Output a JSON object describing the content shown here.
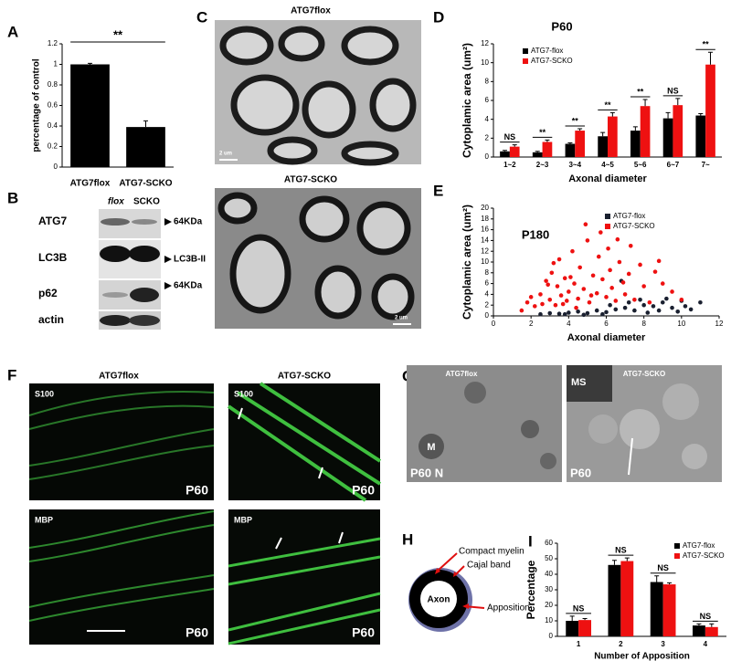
{
  "figure": {
    "letters": [
      "A",
      "B",
      "C",
      "D",
      "E",
      "F",
      "G",
      "H",
      "I"
    ],
    "blot": {
      "lanes": [
        "flox",
        "SCKO"
      ],
      "proteins": [
        "ATG7",
        "LC3B",
        "p62",
        "actin"
      ],
      "markers": [
        "64KDa",
        "LC3B-II",
        "64KDa"
      ]
    },
    "em": {
      "top": "ATG7flox",
      "bottom": "ATG7-SCKO",
      "scale": [
        "2 um",
        "2 um"
      ]
    },
    "fluor": {
      "left": "ATG7flox",
      "right": "ATG7-SCKO",
      "stains": [
        "S100",
        "S100",
        "MBP",
        "MBP"
      ],
      "ages": [
        "P60",
        "P60",
        "P60",
        "P60"
      ]
    },
    "tem": {
      "left": "ATG7flox",
      "right": "ATG7-SCKO",
      "marks": [
        "M",
        "MS"
      ],
      "ages": [
        "P60 N",
        "P60"
      ]
    },
    "schema": {
      "labels": [
        "Compact myelin",
        "Cajal band",
        "Axon",
        "Apposition"
      ]
    }
  },
  "chart_data": [
    {
      "type": "bar",
      "y_label": "percentage of control",
      "categories": [
        "ATG7flox",
        "ATG7-SCKO"
      ],
      "values": [
        1.0,
        0.39
      ],
      "errors": [
        0.01,
        0.06
      ],
      "color": "#000000",
      "annotation": "**",
      "ylim": [
        0,
        1.2
      ],
      "yticks": [
        0,
        0.2,
        0.4,
        0.6,
        0.8,
        1,
        1.2
      ]
    },
    {
      "type": "bar",
      "title": "P60",
      "y_label": "Cytoplamic area (um²)",
      "x_label": "Axonal diameter",
      "categories": [
        "1~2",
        "2~3",
        "3~4",
        "4~5",
        "5~6",
        "6~7",
        "7~"
      ],
      "series": [
        {
          "name": "ATG7-flox",
          "color": "#000000",
          "values": [
            0.6,
            0.5,
            1.4,
            2.2,
            2.8,
            4.1,
            4.4
          ],
          "errors": [
            0.1,
            0.1,
            0.1,
            0.4,
            0.4,
            0.6,
            0.2
          ]
        },
        {
          "name": "ATG7-SCKO",
          "color": "#ee1111",
          "values": [
            1.1,
            1.6,
            2.8,
            4.3,
            5.4,
            5.5,
            9.8
          ],
          "errors": [
            0.2,
            0.2,
            0.2,
            0.4,
            0.7,
            0.7,
            1.3
          ]
        }
      ],
      "annotations": [
        "NS",
        "**",
        "**",
        "**",
        "**",
        "NS",
        "**"
      ],
      "ylim": [
        0,
        12
      ],
      "yticks": [
        0,
        2,
        4,
        6,
        8,
        10,
        12
      ]
    },
    {
      "type": "scatter",
      "title": "P180",
      "y_label": "Cytoplamic area (um²)",
      "x_label": "Axonal diameter",
      "series": [
        {
          "name": "ATG7-flox",
          "color": "#1a2030",
          "x": [
            2.5,
            3.0,
            3.5,
            4.0,
            4.5,
            5.0,
            5.5,
            6.0,
            6.5,
            7.0,
            7.5,
            8.0,
            8.5,
            9.0,
            9.5,
            10.0,
            10.5,
            11.0,
            6.8,
            7.8,
            8.8,
            9.8,
            5.8,
            4.8,
            3.8,
            6.2,
            7.2,
            8.2,
            9.2,
            10.2
          ],
          "y": [
            0.3,
            0.5,
            0.4,
            0.6,
            0.8,
            0.5,
            1.0,
            0.7,
            1.2,
            1.5,
            1.0,
            2.0,
            1.8,
            2.5,
            1.5,
            2.8,
            1.2,
            2.5,
            6.5,
            3.0,
            1.0,
            0.8,
            0.3,
            0.2,
            0.3,
            2.0,
            2.5,
            0.6,
            3.2,
            1.8
          ]
        },
        {
          "name": "ATG7-SCKO",
          "color": "#ee1111",
          "x": [
            1.5,
            1.8,
            2.0,
            2.2,
            2.5,
            2.6,
            2.8,
            3.0,
            3.1,
            3.3,
            3.4,
            3.5,
            3.6,
            3.8,
            3.9,
            4.0,
            4.2,
            4.3,
            4.5,
            4.6,
            4.8,
            5.0,
            5.1,
            5.3,
            5.5,
            5.6,
            5.8,
            6.0,
            6.2,
            6.3,
            6.5,
            6.7,
            6.9,
            7.0,
            7.2,
            7.5,
            7.8,
            8.0,
            8.3,
            8.6,
            9.0,
            9.5,
            10.0,
            4.4,
            5.2,
            6.1,
            3.7,
            2.9,
            7.3,
            8.8,
            4.9,
            5.7,
            3.2,
            6.6,
            4.1
          ],
          "y": [
            1.0,
            2.5,
            3.5,
            1.8,
            4.0,
            2.2,
            6.5,
            3.0,
            8.0,
            2.0,
            5.5,
            10.5,
            3.8,
            7.0,
            2.8,
            4.5,
            12.0,
            6.0,
            3.2,
            9.0,
            5.0,
            14.0,
            2.5,
            7.5,
            4.2,
            11.0,
            6.8,
            3.5,
            8.5,
            5.2,
            2.8,
            10.0,
            6.2,
            4.0,
            7.8,
            3.0,
            9.5,
            5.5,
            2.5,
            8.2,
            6.0,
            4.5,
            3.0,
            1.5,
            3.8,
            12.5,
            2.2,
            5.8,
            13.0,
            10.2,
            17.0,
            15.5,
            9.8,
            14.2,
            7.2
          ]
        }
      ],
      "xlim": [
        0,
        12
      ],
      "xticks": [
        0,
        2,
        4,
        6,
        8,
        10,
        12
      ],
      "ylim": [
        0,
        20
      ],
      "yticks": [
        0,
        2,
        4,
        6,
        8,
        10,
        12,
        14,
        16,
        18,
        20
      ]
    },
    {
      "type": "bar",
      "y_label": "Percentage",
      "x_label": "Number of Apposition",
      "categories": [
        "1",
        "2",
        "3",
        "4"
      ],
      "series": [
        {
          "name": "ATG7-flox",
          "color": "#000000",
          "values": [
            10,
            46,
            35,
            7
          ],
          "errors": [
            3,
            3,
            4,
            1
          ]
        },
        {
          "name": "ATG7-SCKO",
          "color": "#ee1111",
          "values": [
            10.5,
            48.5,
            33.5,
            6
          ],
          "errors": [
            1,
            2,
            1,
            2
          ]
        }
      ],
      "annotations": [
        "NS",
        "NS",
        "NS",
        "NS"
      ],
      "ylim": [
        0,
        60
      ],
      "yticks": [
        0,
        10,
        20,
        30,
        40,
        50,
        60
      ]
    }
  ]
}
